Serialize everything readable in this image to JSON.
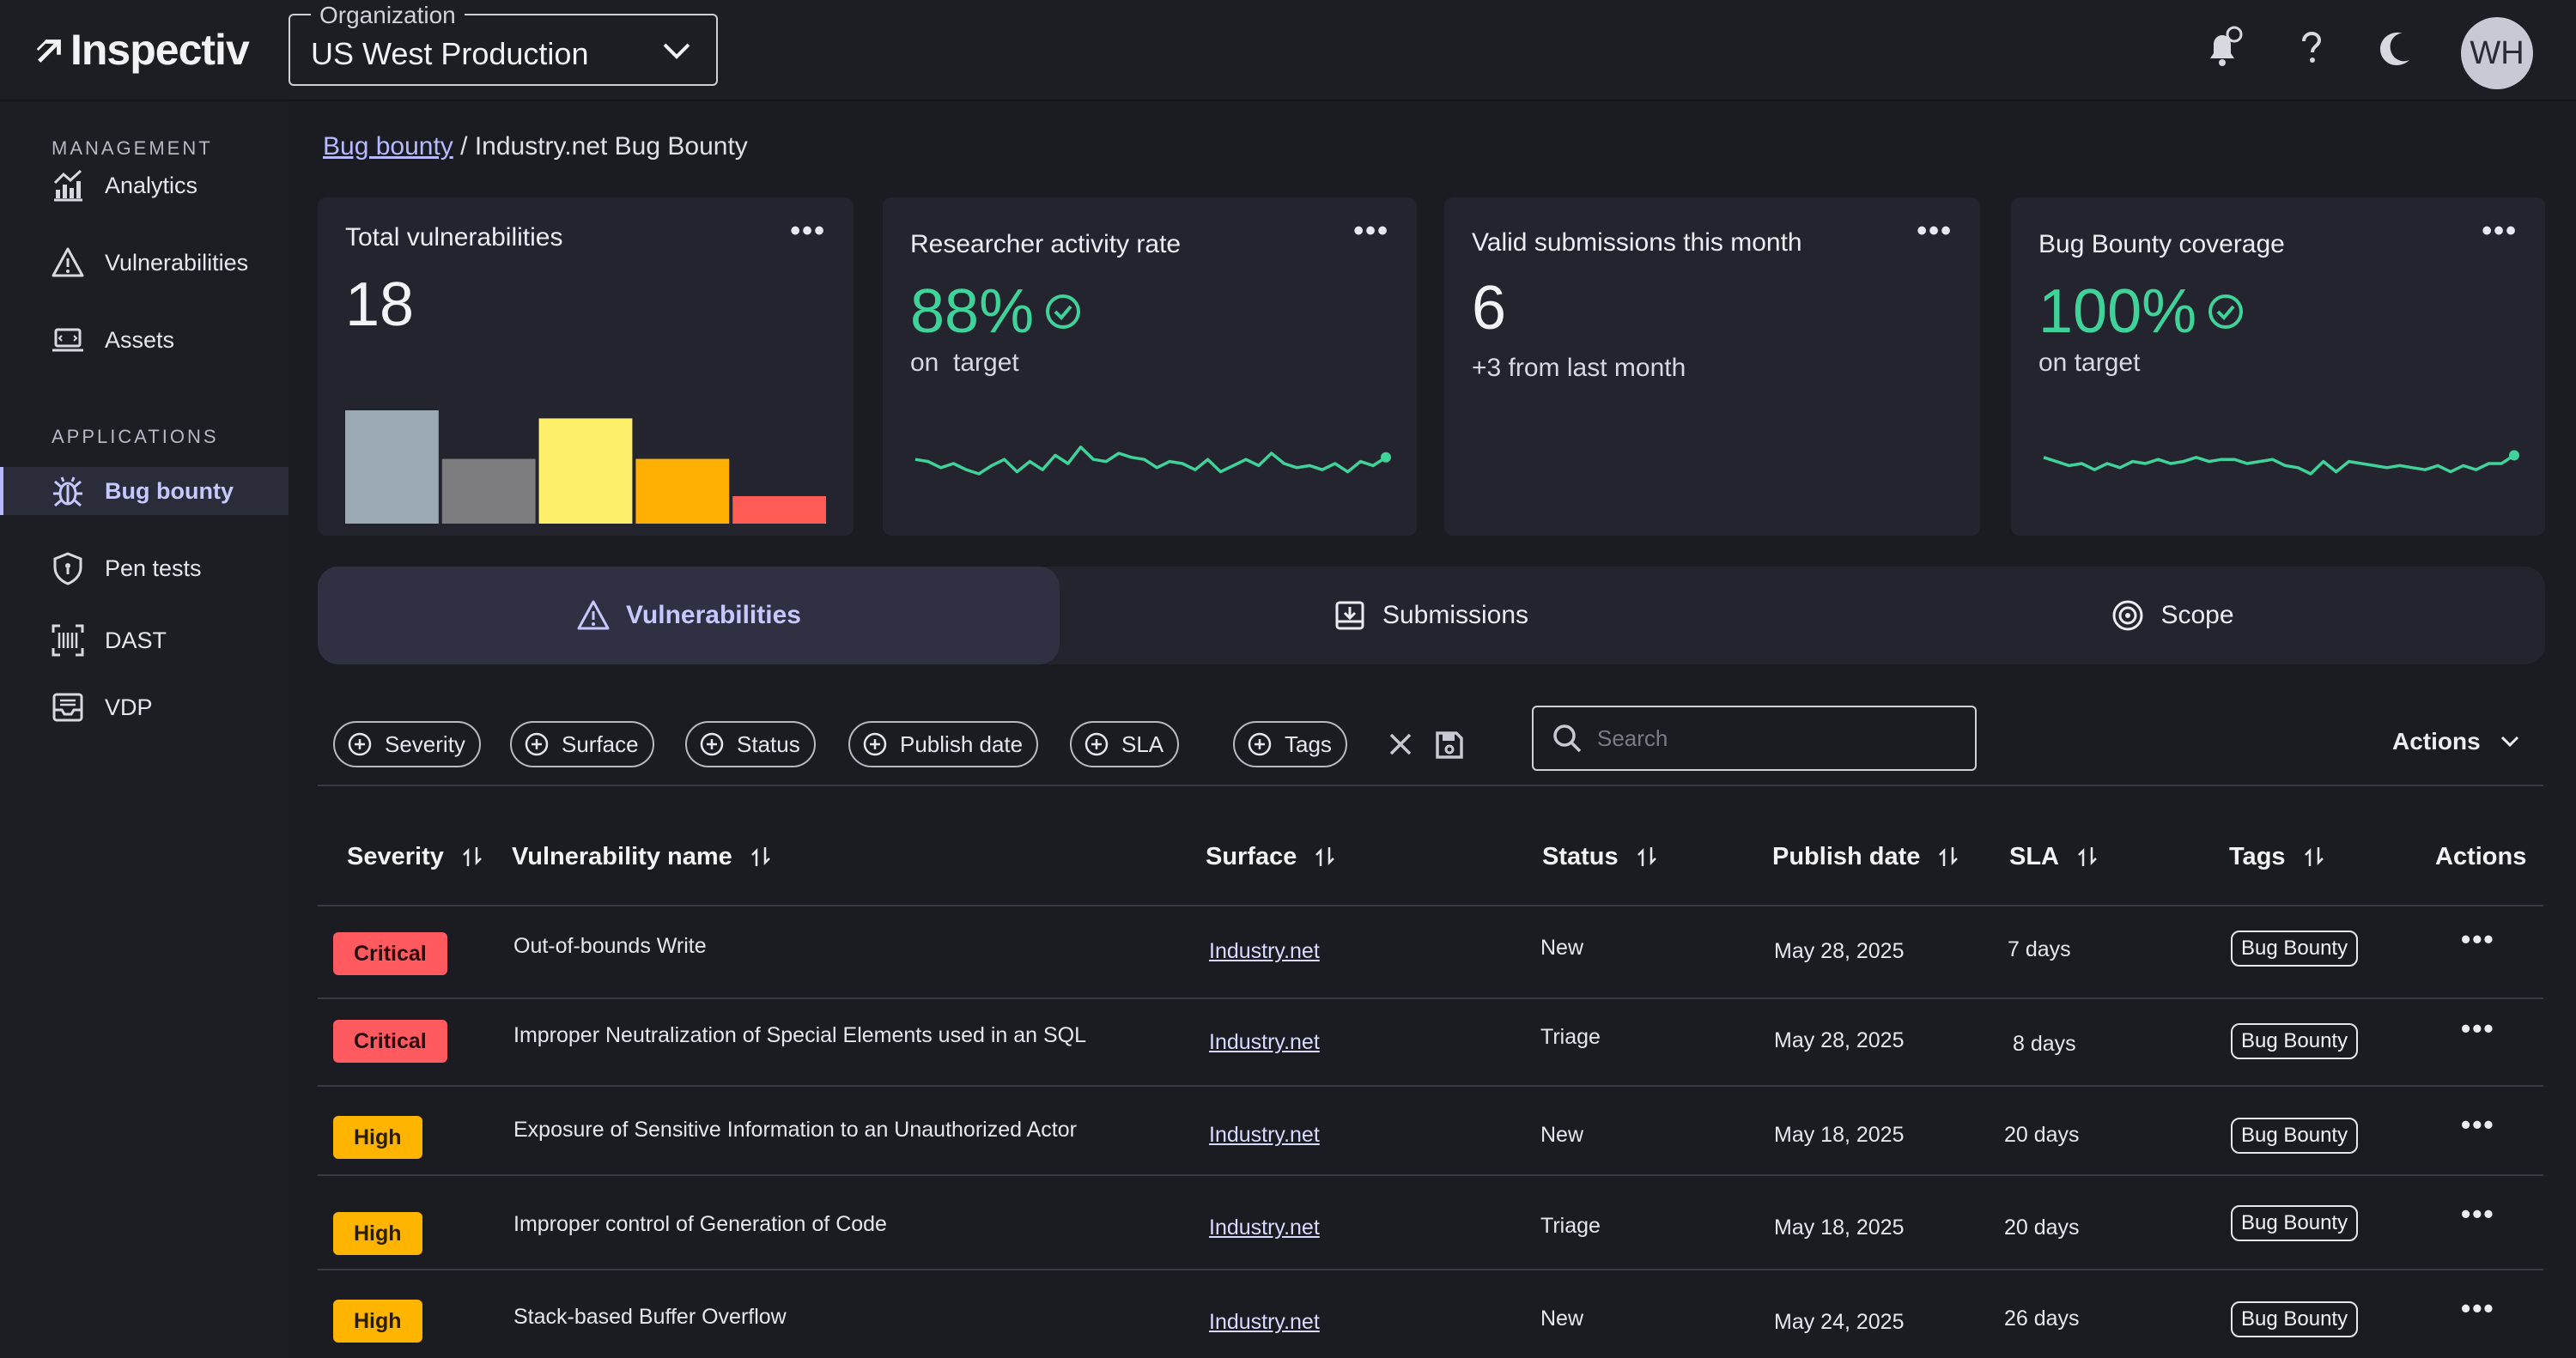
{
  "app": {
    "name": "Inspectiv",
    "user_initials": "WH"
  },
  "organization": {
    "label": "Organization",
    "value": "US West Production"
  },
  "sidebar": {
    "sections": [
      {
        "title": "MANAGEMENT",
        "items": [
          {
            "label": "Analytics",
            "icon": "analytics-icon"
          },
          {
            "label": "Vulnerabilities",
            "icon": "warning-icon"
          },
          {
            "label": "Assets",
            "icon": "assets-icon"
          }
        ]
      },
      {
        "title": "APPLICATIONS",
        "items": [
          {
            "label": "Bug bounty",
            "icon": "bug-icon",
            "active": true
          },
          {
            "label": "Pen tests",
            "icon": "shield-icon"
          },
          {
            "label": "DAST",
            "icon": "barcode-scan-icon"
          },
          {
            "label": "VDP",
            "icon": "inbox-icon"
          }
        ]
      }
    ]
  },
  "breadcrumb": {
    "parent": "Bug bounty",
    "separator": " / ",
    "current": "Industry.net Bug Bounty"
  },
  "cards": {
    "total": {
      "title": "Total vulnerabilities",
      "value": "18",
      "bars": [
        {
          "value": 7,
          "color": "#9aa9b3"
        },
        {
          "value": 4,
          "color": "#7d7d80"
        },
        {
          "value": 6.5,
          "color": "#fff06b"
        },
        {
          "value": 4,
          "color": "#ffb000"
        },
        {
          "value": 1.7,
          "color": "#ff5c55"
        }
      ]
    },
    "researcher": {
      "title": "Researcher activity rate",
      "value": "88%",
      "sub": "on  target",
      "spark": [
        0.6,
        0.55,
        0.4,
        0.5,
        0.35,
        0.25,
        0.45,
        0.6,
        0.3,
        0.55,
        0.35,
        0.7,
        0.5,
        0.9,
        0.6,
        0.55,
        0.75,
        0.65,
        0.6,
        0.4,
        0.55,
        0.5,
        0.35,
        0.6,
        0.3,
        0.45,
        0.6,
        0.45,
        0.75,
        0.5,
        0.4,
        0.45,
        0.35,
        0.5,
        0.3,
        0.55,
        0.45,
        0.65
      ]
    },
    "valid": {
      "title": "Valid submissions this month",
      "value": "6",
      "sub": "+3 from last month"
    },
    "coverage": {
      "title": "Bug Bounty coverage",
      "value": "100%",
      "sub": "on target",
      "spark": [
        0.65,
        0.55,
        0.45,
        0.5,
        0.35,
        0.5,
        0.4,
        0.55,
        0.5,
        0.6,
        0.5,
        0.55,
        0.65,
        0.55,
        0.6,
        0.6,
        0.5,
        0.55,
        0.6,
        0.45,
        0.4,
        0.25,
        0.55,
        0.3,
        0.55,
        0.5,
        0.45,
        0.4,
        0.45,
        0.4,
        0.35,
        0.45,
        0.3,
        0.45,
        0.35,
        0.5,
        0.5,
        0.7
      ]
    }
  },
  "tabs": [
    {
      "label": "Vulnerabilities",
      "icon": "warning-icon",
      "active": true
    },
    {
      "label": "Submissions",
      "icon": "download-tray-icon"
    },
    {
      "label": "Scope",
      "icon": "target-icon"
    }
  ],
  "filters": [
    "Severity",
    "Surface",
    "Status",
    "Publish date",
    "SLA",
    "Tags"
  ],
  "search": {
    "placeholder": "Search",
    "value": ""
  },
  "actions_label": "Actions",
  "table": {
    "headers": [
      "Severity",
      "Vulnerability name",
      "Surface",
      "Status",
      "Publish date",
      "SLA",
      "Tags",
      "Actions"
    ],
    "rows": [
      {
        "severity": "Critical",
        "level": "critical",
        "name": "Out-of-bounds Write",
        "surface": "Industry.net",
        "status": "New",
        "date": "May 28, 2025",
        "sla": "7 days",
        "tag": "Bug Bounty"
      },
      {
        "severity": "Critical",
        "level": "critical",
        "name": "Improper Neutralization of Special Elements used in an SQL",
        "surface": "Industry.net",
        "status": "Triage",
        "date": "May 28, 2025",
        "sla": "8 days",
        "tag": "Bug Bounty"
      },
      {
        "severity": "High",
        "level": "high",
        "name": "Exposure of Sensitive Information to an Unauthorized Actor",
        "surface": "Industry.net",
        "status": "New",
        "date": "May 18, 2025",
        "sla": "20 days",
        "tag": "Bug Bounty"
      },
      {
        "severity": "High",
        "level": "high",
        "name": "Improper control of Generation of Code",
        "surface": "Industry.net",
        "status": "Triage",
        "date": "May 18, 2025",
        "sla": "20 days",
        "tag": "Bug Bounty"
      },
      {
        "severity": "High",
        "level": "high",
        "name": "Stack-based Buffer Overflow",
        "surface": "Industry.net",
        "status": "New",
        "date": "May 24, 2025",
        "sla": "26 days",
        "tag": "Bug Bounty"
      }
    ]
  },
  "colors": {
    "accent": "#b7baff",
    "success": "#3fd39a",
    "critical": "#ff5a5f",
    "high": "#ffb400"
  }
}
